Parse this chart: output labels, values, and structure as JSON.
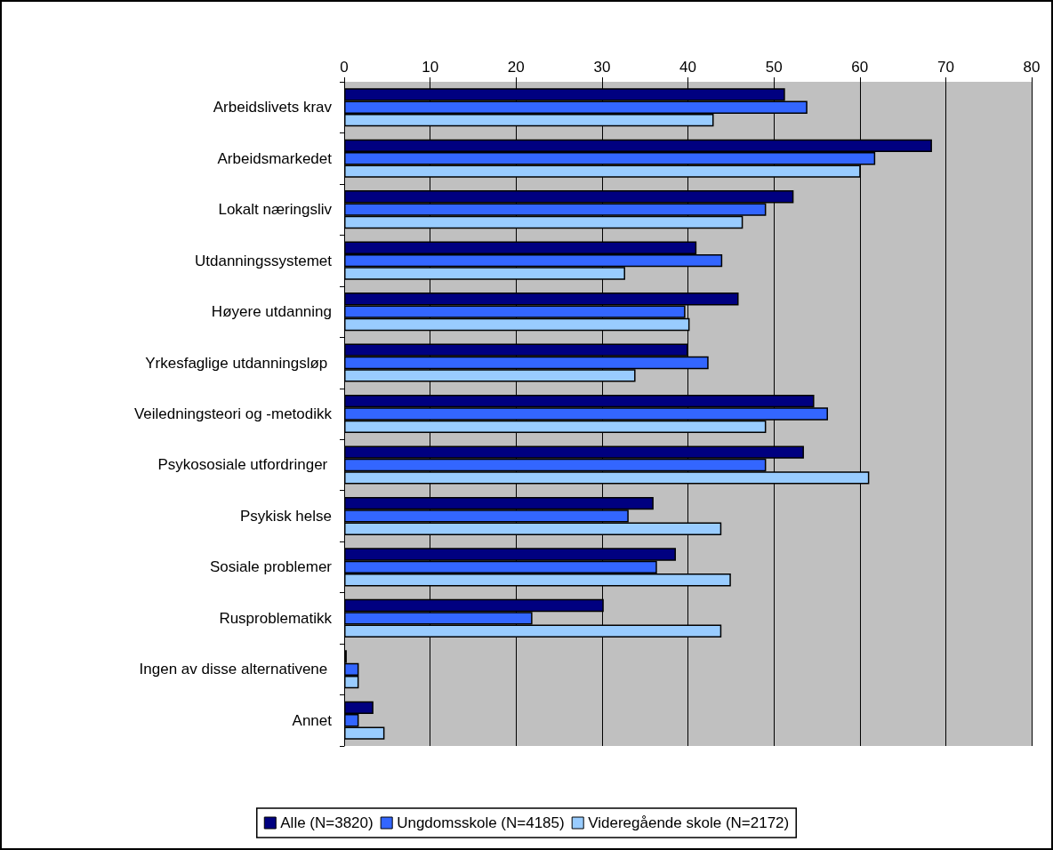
{
  "chart_data": {
    "type": "bar",
    "orientation": "horizontal",
    "categories": [
      "Arbeidslivets krav",
      "Arbeidsmarkedet",
      "Lokalt næringsliv",
      "Utdanningssystemet",
      "Høyere utdanning",
      "Yrkesfaglige utdanningsløp ",
      "Veiledningsteori og -metodikk",
      "Psykososiale utfordringer ",
      "Psykisk helse",
      "Sosiale problemer",
      "Rusproblematikk",
      "Ingen av disse alternativene ",
      "Annet"
    ],
    "series": [
      {
        "name": "Alle (N=3820)",
        "color": "#000080",
        "values": [
          51.3,
          68.4,
          52.3,
          41.0,
          45.9,
          40.0,
          54.7,
          53.5,
          36.0,
          38.6,
          30.2,
          0.3,
          3.4
        ]
      },
      {
        "name": "Ungdomsskole (N=4185)",
        "color": "#3366ff",
        "values": [
          53.9,
          61.8,
          49.1,
          44.0,
          39.7,
          42.4,
          56.3,
          49.1,
          33.1,
          36.4,
          21.9,
          1.7,
          1.7
        ]
      },
      {
        "name": "Videregående skole (N=2172)",
        "color": "#99ccff",
        "values": [
          43.0,
          60.1,
          46.4,
          32.7,
          40.2,
          33.9,
          49.1,
          61.1,
          43.9,
          45.0,
          43.9,
          1.7,
          4.7
        ]
      }
    ],
    "xlim": [
      0,
      80
    ],
    "xticks": [
      0,
      10,
      20,
      30,
      40,
      50,
      60,
      70,
      80
    ],
    "grid": "x",
    "legend": "bottom"
  }
}
